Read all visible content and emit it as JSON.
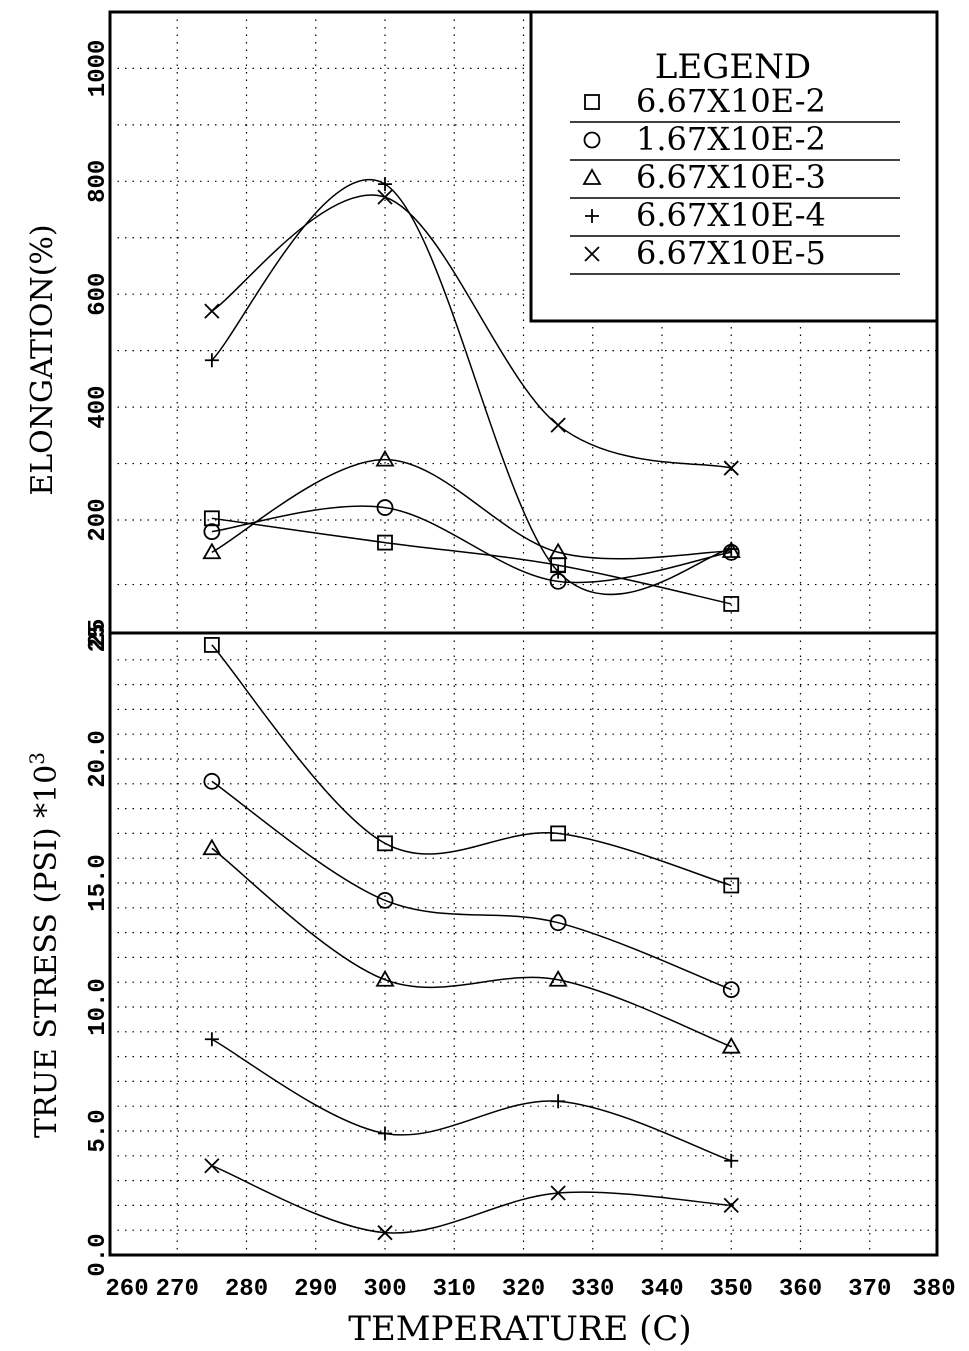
{
  "chart_data": [
    {
      "type": "line",
      "panel": "top",
      "ylabel": "ELONGATION(%)",
      "y_ticks": [
        "1000",
        "800",
        "600",
        "400",
        "200",
        "25"
      ],
      "ylim": [
        25,
        1000
      ],
      "xlim": [
        260,
        380
      ],
      "grid": true,
      "legend": {
        "title": "LEGEND",
        "placement": "top-right",
        "entries": [
          {
            "marker": "square",
            "label": "6.67X10E-2"
          },
          {
            "marker": "circle",
            "label": "1.67X10E-2"
          },
          {
            "marker": "triangle",
            "label": "6.67X10E-3"
          },
          {
            "marker": "plus",
            "label": "6.67X10E-4"
          },
          {
            "marker": "cross",
            "label": "6.67X10E-5"
          }
        ]
      },
      "x": [
        275,
        300,
        325,
        350
      ],
      "series": [
        {
          "name": "6.67X10E-2",
          "marker": "square",
          "values": [
            203,
            165,
            130,
            70
          ]
        },
        {
          "name": "1.67X10E-2",
          "marker": "circle",
          "values": [
            182,
            222,
            105,
            150
          ]
        },
        {
          "name": "6.67X10E-3",
          "marker": "triangle",
          "values": [
            150,
            307,
            150,
            152
          ]
        },
        {
          "name": "6.67X10E-4",
          "marker": "plus",
          "values": [
            483,
            795,
            120,
            155
          ]
        },
        {
          "name": "6.67X10E-5",
          "marker": "cross",
          "values": [
            570,
            772,
            368,
            292
          ]
        }
      ]
    },
    {
      "type": "line",
      "panel": "bottom",
      "ylabel": "TRUE STRESS (PSI) *10",
      "ylabel_superscript": "3",
      "xlabel": "TEMPERATURE (C)",
      "y_ticks": [
        "0.0",
        "5.0",
        "10.0",
        "15.0",
        "20.0",
        "25"
      ],
      "ylim": [
        0,
        25
      ],
      "x_ticks": [
        "260",
        "270",
        "280",
        "290",
        "300",
        "310",
        "320",
        "330",
        "340",
        "350",
        "360",
        "370",
        "380"
      ],
      "xlim": [
        260,
        380
      ],
      "grid": true,
      "x": [
        275,
        300,
        325,
        350
      ],
      "series": [
        {
          "name": "6.67X10E-2",
          "marker": "square",
          "values": [
            24.6,
            16.6,
            17.0,
            14.9
          ]
        },
        {
          "name": "1.67X10E-2",
          "marker": "circle",
          "values": [
            19.1,
            14.3,
            13.4,
            10.7
          ]
        },
        {
          "name": "6.67X10E-3",
          "marker": "triangle",
          "values": [
            16.4,
            11.1,
            11.1,
            8.4
          ]
        },
        {
          "name": "6.67X10E-4",
          "marker": "plus",
          "values": [
            8.7,
            4.9,
            6.2,
            3.8
          ]
        },
        {
          "name": "6.67X10E-5",
          "marker": "cross",
          "values": [
            3.6,
            0.9,
            2.5,
            2.0
          ]
        }
      ]
    }
  ]
}
